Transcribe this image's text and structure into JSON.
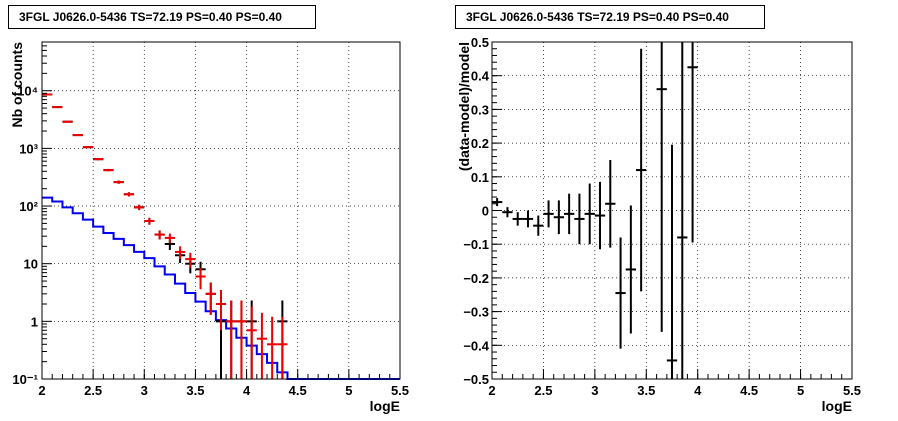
{
  "chart_data": [
    {
      "type": "line",
      "title": "3FGL J0626.0-5436 TS=72.19 PS=0.40 PS=0.40",
      "xlabel": "logE",
      "ylabel": "Nb of counts",
      "log_y": true,
      "xlim": [
        2,
        5.5
      ],
      "ylim": [
        0.1,
        70000
      ],
      "grid": true,
      "x_ticks": [
        "2",
        "2.5",
        "3",
        "3.5",
        "4",
        "4.5",
        "5",
        "5.5"
      ],
      "y_ticks": [
        "10⁻¹",
        "1",
        "10",
        "10²",
        "10³",
        "10⁴"
      ],
      "series": [
        {
          "kind": "step",
          "color": "#0000ee",
          "bin_width": 0.1,
          "x": [
            2.05,
            2.15,
            2.25,
            2.35,
            2.45,
            2.55,
            2.65,
            2.75,
            2.85,
            2.95,
            3.05,
            3.15,
            3.25,
            3.35,
            3.45,
            3.55,
            3.65,
            3.75,
            3.85,
            3.95,
            4.05,
            4.15,
            4.25,
            4.35,
            4.45,
            4.55,
            4.65,
            4.75,
            4.85,
            4.95,
            5.05,
            5.15,
            5.25,
            5.35,
            5.45
          ],
          "values": [
            140,
            120,
            95,
            75,
            58,
            44,
            34,
            27,
            21,
            16,
            12.5,
            9,
            6.5,
            4.5,
            3.1,
            2.2,
            1.5,
            1.05,
            0.75,
            0.52,
            0.38,
            0.27,
            0.19,
            0.13,
            0.1,
            0.1,
            0.1,
            0.1,
            0.1,
            0.1,
            0.1,
            0.1,
            0.1,
            0.1,
            0.1
          ]
        },
        {
          "kind": "errorbar",
          "color": "#000000",
          "bin_width": 0.1,
          "x": [
            2.05,
            2.15,
            2.25,
            2.35,
            2.45,
            2.55,
            2.65,
            2.75,
            2.85,
            2.95,
            3.05,
            3.15,
            3.25,
            3.35,
            3.45,
            3.55,
            3.65,
            3.75,
            3.85,
            3.95,
            4.05,
            4.35
          ],
          "values": [
            8600,
            5200,
            2900,
            1700,
            1050,
            650,
            420,
            260,
            160,
            95,
            55,
            32,
            22,
            14,
            10,
            8,
            3,
            1,
            1,
            1,
            1,
            1
          ],
          "err_lo": [
            93,
            72,
            54,
            41,
            32,
            25,
            20,
            16,
            13,
            10,
            7.4,
            5.7,
            4.7,
            3.7,
            3.2,
            2.8,
            1.7,
            0.9,
            0.9,
            0.9,
            0.9,
            0.9
          ],
          "err_hi": [
            93,
            72,
            54,
            41,
            32,
            25,
            20,
            16,
            13,
            10,
            7.4,
            5.7,
            4.7,
            3.7,
            3.2,
            2.8,
            1.7,
            1.3,
            1.3,
            1.3,
            1.3,
            1.3
          ]
        },
        {
          "kind": "errorbar",
          "color": "#ee0000",
          "bin_width": 0.1,
          "x": [
            2.05,
            2.15,
            2.25,
            2.35,
            2.45,
            2.55,
            2.65,
            2.75,
            2.85,
            2.95,
            3.05,
            3.15,
            3.25,
            3.35,
            3.45,
            3.55,
            3.65,
            3.75,
            3.85,
            3.95,
            4.05,
            4.15,
            4.25,
            4.35
          ],
          "values": [
            8600,
            5200,
            2900,
            1700,
            1050,
            650,
            420,
            260,
            160,
            95,
            55,
            32,
            28,
            16,
            12,
            6,
            3,
            2,
            1,
            1,
            0.7,
            0.5,
            0.4,
            0.4
          ],
          "err_lo": [
            93,
            72,
            54,
            41,
            32,
            25,
            20,
            16,
            13,
            10,
            7.4,
            5.7,
            5.3,
            4,
            3.5,
            2.4,
            1.7,
            1.3,
            0.9,
            0.9,
            0.6,
            0.45,
            0.35,
            0.35
          ],
          "err_hi": [
            93,
            72,
            54,
            41,
            32,
            25,
            20,
            16,
            13,
            10,
            7.4,
            5.7,
            5.3,
            4,
            3.5,
            2.4,
            1.7,
            1.5,
            1.3,
            1.3,
            1.1,
            0.9,
            0.8,
            0.8
          ]
        }
      ]
    },
    {
      "type": "scatter",
      "title": "3FGL J0626.0-5436 TS=72.19 PS=0.40 PS=0.40",
      "xlabel": "logE",
      "ylabel": "(data-model)/model",
      "xlim": [
        2,
        5.5
      ],
      "ylim": [
        -0.5,
        0.5
      ],
      "grid": true,
      "x_ticks": [
        "2",
        "2.5",
        "3",
        "3.5",
        "4",
        "4.5",
        "5",
        "5.5"
      ],
      "y_ticks": [
        "−0.5",
        "−0.4",
        "−0.3",
        "−0.2",
        "−0.1",
        "0",
        "0.1",
        "0.2",
        "0.3",
        "0.4",
        "0.5"
      ],
      "series": [
        {
          "kind": "errorbar",
          "color": "#000000",
          "bin_width": 0.1,
          "x": [
            2.05,
            2.15,
            2.25,
            2.35,
            2.45,
            2.55,
            2.65,
            2.75,
            2.85,
            2.95,
            3.05,
            3.15,
            3.25,
            3.35,
            3.45,
            3.65,
            3.75,
            3.85,
            3.95
          ],
          "values": [
            0.025,
            -0.005,
            -0.025,
            -0.025,
            -0.045,
            -0.01,
            -0.02,
            -0.01,
            -0.025,
            -0.01,
            -0.015,
            0.02,
            -0.245,
            -0.175,
            0.12,
            0.36,
            -0.445,
            -0.08,
            0.425
          ],
          "err": [
            0.012,
            0.015,
            0.02,
            0.025,
            0.03,
            0.04,
            0.05,
            0.06,
            0.075,
            0.09,
            0.1,
            0.13,
            0.165,
            0.19,
            0.36,
            0.72,
            0.64,
            0.58,
            0.52
          ]
        }
      ]
    }
  ]
}
